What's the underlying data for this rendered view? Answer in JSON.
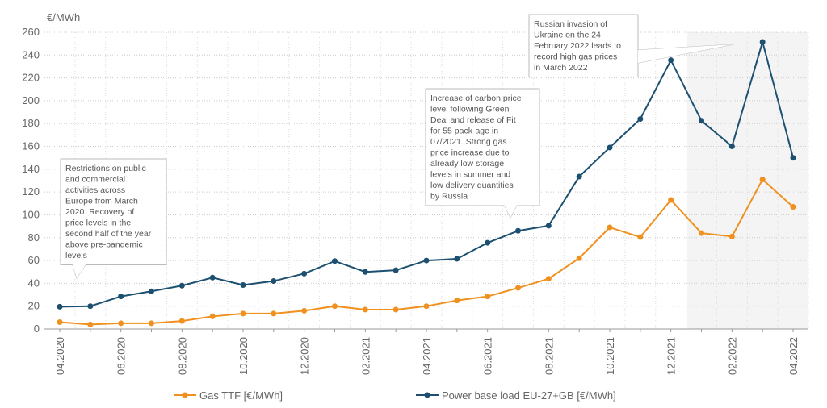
{
  "chart_data": {
    "type": "line",
    "y_label": "€/MWh",
    "categories": [
      "04.2020",
      null,
      "06.2020",
      null,
      "08.2020",
      null,
      "10.2020",
      null,
      "12.2020",
      null,
      "02.2021",
      null,
      "04.2021",
      null,
      "06.2021",
      null,
      "08.2021",
      null,
      "10.2021",
      null,
      "12.2021",
      null,
      "02.2022",
      null,
      "04.2022"
    ],
    "series": [
      {
        "name": "Gas TTF [€/MWh]",
        "color": "#f0901e",
        "values": [
          6,
          4,
          5,
          5,
          7,
          11,
          13.5,
          13.5,
          16,
          20,
          17,
          17,
          20,
          25,
          28.5,
          36,
          44,
          62,
          89,
          80.5,
          113,
          84,
          81,
          131,
          107
        ]
      },
      {
        "name": "Power base load EU-27+GB [€/MWh]",
        "color": "#1d5070",
        "values": [
          19.5,
          20,
          28.5,
          33,
          38,
          45,
          38.5,
          42,
          48.5,
          59.5,
          50,
          51.5,
          60,
          61.5,
          75.5,
          86,
          90.5,
          133.5,
          159,
          184,
          235.5,
          182.5,
          160,
          251.5,
          150
        ]
      }
    ],
    "ylim": [
      0,
      260
    ],
    "yticks": [
      0,
      20,
      40,
      60,
      80,
      100,
      120,
      140,
      160,
      180,
      200,
      220,
      240,
      260
    ],
    "grid": true,
    "annotations": [
      {
        "lines": [
          "Restrictions on public",
          "and commercial",
          "activities across",
          "Europe from March",
          "2020. Recovery of",
          "price levels in the",
          "second half of the year",
          "above pre-pandemic",
          "levels"
        ]
      },
      {
        "lines": [
          "Increase of carbon price",
          "level following Green",
          "Deal and release of Fit",
          "for 55 pack-age in",
          "07/2021. Strong gas",
          "price increase due to",
          "already low storage",
          "levels in summer and",
          "low delivery quantities",
          "by Russia"
        ]
      },
      {
        "lines": [
          "Russian invasion of",
          "Ukraine on the 24",
          "February 2022 leads to",
          "record high gas prices",
          "in March 2022"
        ]
      }
    ]
  }
}
